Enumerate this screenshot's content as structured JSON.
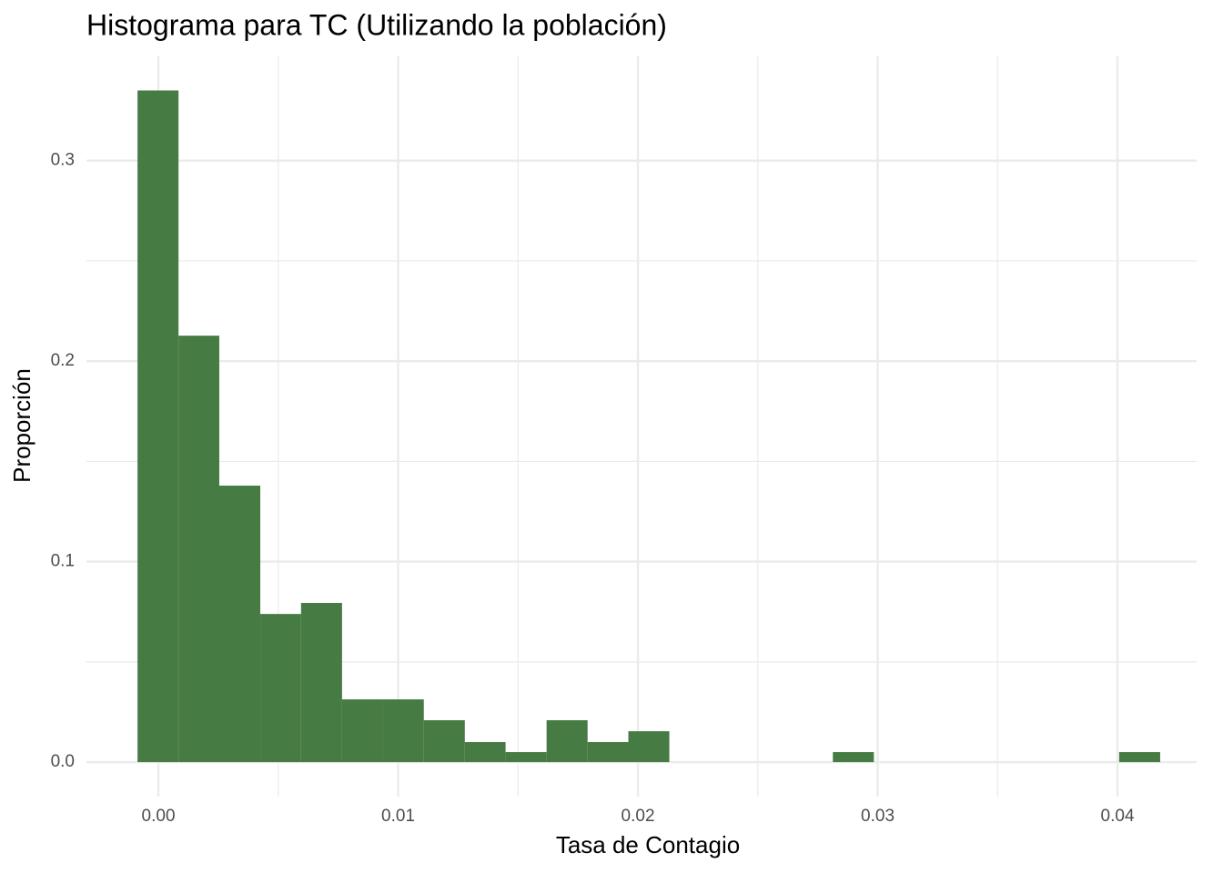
{
  "chart_data": {
    "type": "histogram",
    "title": "Histograma para TC (Utilizando la población)",
    "x_label": "Tasa de Contagio",
    "y_label": "Proporción",
    "color": "#467b43",
    "bins": [
      -0.00087,
      0.00084,
      0.00254,
      0.00425,
      0.00595,
      0.00766,
      0.00937,
      0.01107,
      0.01278,
      0.01448,
      0.01619,
      0.0179,
      0.0196,
      0.02131,
      0.02301,
      0.02472,
      0.02643,
      0.02813,
      0.02984,
      0.03154,
      0.03325,
      0.03496,
      0.03666,
      0.03837,
      0.04007,
      0.04178
    ],
    "values": [
      0.335,
      0.2127,
      0.1379,
      0.0739,
      0.0794,
      0.0313,
      0.0313,
      0.0209,
      0.01,
      0.005,
      0.0209,
      0.01,
      0.0154,
      0,
      0,
      0,
      0,
      0.005,
      0,
      0,
      0,
      0,
      0,
      0,
      0.005
    ],
    "xlim": [
      -0.003,
      0.0433
    ],
    "ylim": [
      -0.0172,
      0.352
    ],
    "xticks": [
      {
        "value": 0,
        "label": "0.00"
      },
      {
        "value": 0.01,
        "label": "0.01"
      },
      {
        "value": 0.02,
        "label": "0.02"
      },
      {
        "value": 0.03,
        "label": "0.03"
      },
      {
        "value": 0.04,
        "label": "0.04"
      }
    ],
    "yticks": [
      {
        "value": 0,
        "label": "0.0"
      },
      0.1,
      0.2,
      0.3
    ],
    "xminorticks": [
      0.005,
      0.015,
      0.025,
      0.035
    ],
    "yminorticks": [
      0.05,
      0.15,
      0.25
    ],
    "grid": true
  }
}
